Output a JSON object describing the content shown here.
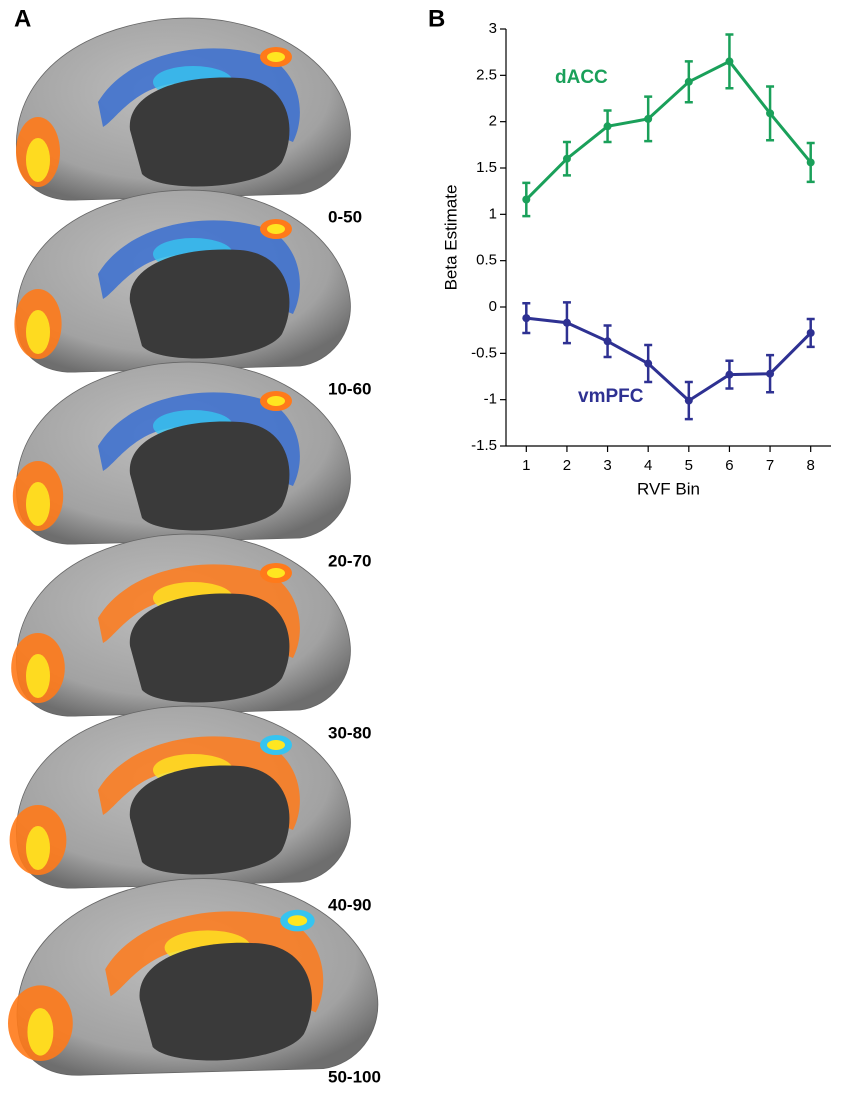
{
  "panel_a": {
    "label": "A",
    "bin_labels": [
      "0-50",
      "10-60",
      "20-70",
      "30-80",
      "40-90",
      "50-100"
    ]
  },
  "chart_data": {
    "type": "line",
    "label": "B",
    "xlabel": "RVF Bin",
    "ylabel": "Beta Estimate",
    "x": [
      1,
      2,
      3,
      4,
      5,
      6,
      7,
      8
    ],
    "xlim": [
      0.5,
      8.5
    ],
    "xticks": [
      1,
      2,
      3,
      4,
      5,
      6,
      7,
      8
    ],
    "ylim": [
      -1.5,
      3
    ],
    "yticks": [
      -1.5,
      -1,
      -0.5,
      0,
      0.5,
      1,
      1.5,
      2,
      2.5,
      3
    ],
    "series": [
      {
        "name": "dACC",
        "color": "#1aa05a",
        "values": [
          1.16,
          1.6,
          1.95,
          2.03,
          2.43,
          2.65,
          2.09,
          1.56
        ],
        "errors": [
          0.18,
          0.18,
          0.17,
          0.24,
          0.22,
          0.29,
          0.29,
          0.21
        ]
      },
      {
        "name": "vmPFC",
        "color": "#2e3192",
        "values": [
          -0.12,
          -0.17,
          -0.37,
          -0.61,
          -1.01,
          -0.73,
          -0.72,
          -0.28
        ],
        "errors": [
          0.16,
          0.22,
          0.17,
          0.2,
          0.2,
          0.15,
          0.2,
          0.15
        ]
      }
    ]
  }
}
